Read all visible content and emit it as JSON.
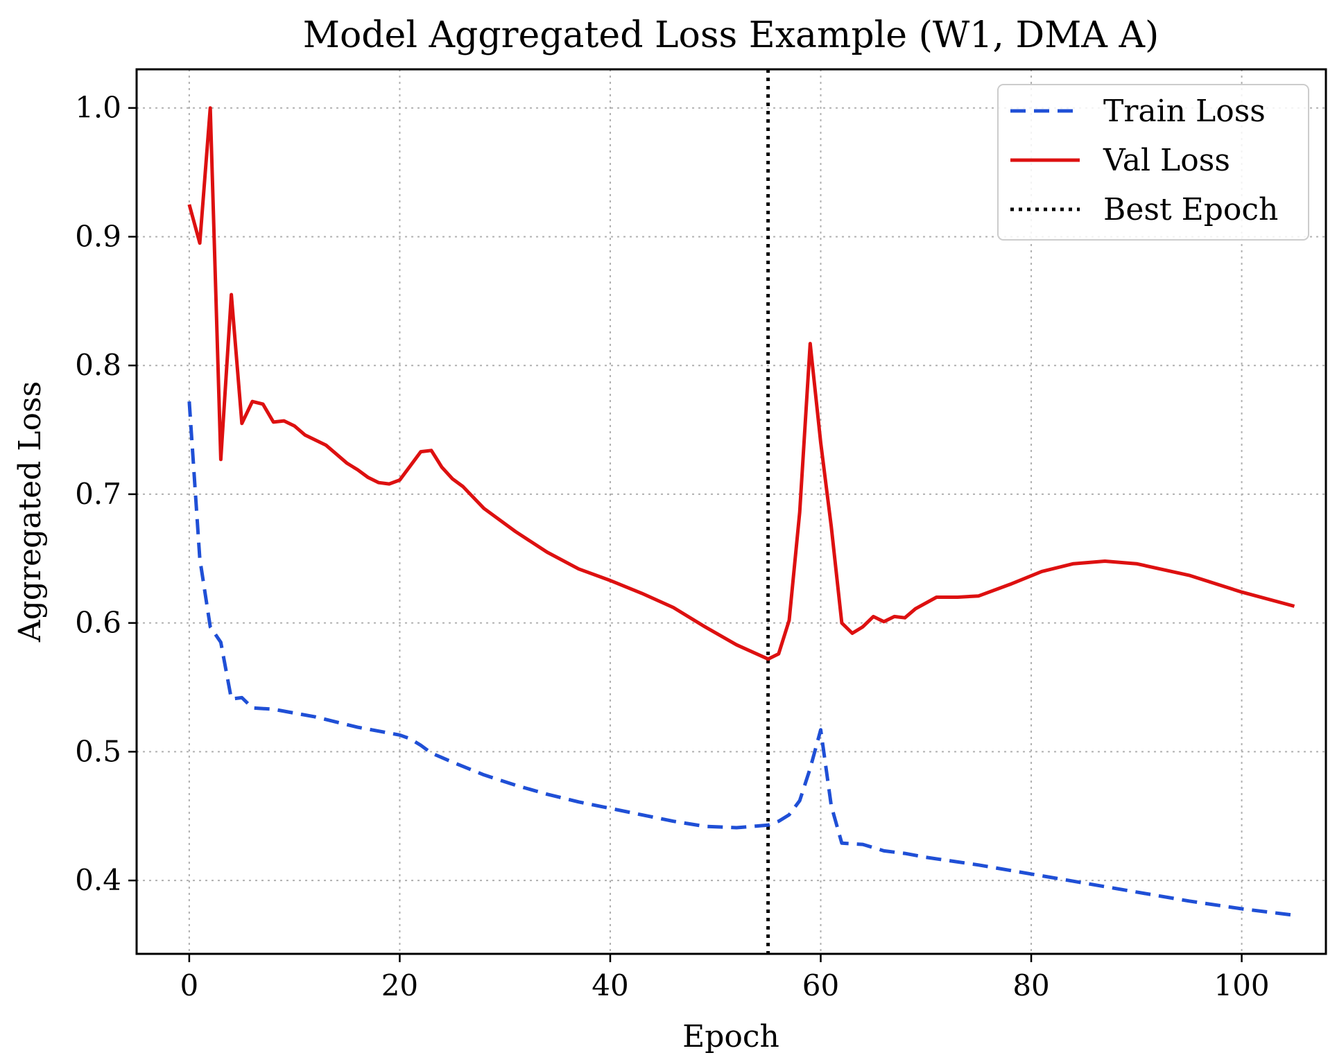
{
  "chart_data": {
    "type": "line",
    "title": "Model Aggregated Loss Example (W1, DMA A)",
    "xlabel": "Epoch",
    "ylabel": "Aggregated Loss",
    "xlim": [
      -5,
      108
    ],
    "ylim": [
      0.343,
      1.03
    ],
    "xticks": [
      0,
      20,
      40,
      60,
      80,
      100
    ],
    "yticks": [
      0.4,
      0.5,
      0.6,
      0.7,
      0.8,
      0.9,
      1.0
    ],
    "xtick_labels": [
      "0",
      "20",
      "40",
      "60",
      "80",
      "100"
    ],
    "ytick_labels": [
      "0.4",
      "0.5",
      "0.6",
      "0.7",
      "0.8",
      "0.9",
      "1.0"
    ],
    "grid": true,
    "legend_position": "top-right",
    "series": [
      {
        "name": "Train Loss",
        "color": "#1f4fd6",
        "style": "dashed",
        "x": [
          0,
          1,
          2,
          3,
          4,
          5,
          6,
          8,
          10,
          12,
          14,
          16,
          18,
          20,
          21,
          22,
          23,
          25,
          28,
          31,
          34,
          37,
          40,
          43,
          46,
          49,
          52,
          55,
          56,
          57,
          58,
          59,
          60,
          61,
          62,
          64,
          66,
          68,
          70,
          75,
          80,
          85,
          90,
          95,
          100,
          105
        ],
        "values": [
          0.772,
          0.65,
          0.597,
          0.585,
          0.541,
          0.542,
          0.534,
          0.533,
          0.53,
          0.527,
          0.523,
          0.519,
          0.516,
          0.513,
          0.51,
          0.505,
          0.499,
          0.492,
          0.482,
          0.474,
          0.467,
          0.461,
          0.456,
          0.451,
          0.446,
          0.442,
          0.441,
          0.443,
          0.446,
          0.451,
          0.462,
          0.487,
          0.517,
          0.458,
          0.429,
          0.428,
          0.423,
          0.421,
          0.418,
          0.412,
          0.405,
          0.398,
          0.391,
          0.384,
          0.378,
          0.373
        ]
      },
      {
        "name": "Val Loss",
        "color": "#dd1010",
        "style": "solid",
        "x": [
          0,
          1,
          2,
          3,
          4,
          5,
          6,
          7,
          8,
          9,
          10,
          11,
          12,
          13,
          14,
          15,
          16,
          17,
          18,
          19,
          20,
          21,
          22,
          23,
          24,
          25,
          26,
          28,
          31,
          34,
          37,
          40,
          43,
          46,
          49,
          52,
          55,
          56,
          57,
          58,
          59,
          60,
          61,
          62,
          63,
          64,
          65,
          66,
          67,
          68,
          69,
          71,
          73,
          75,
          78,
          81,
          84,
          87,
          90,
          95,
          100,
          105
        ],
        "values": [
          0.925,
          0.895,
          1.0,
          0.727,
          0.855,
          0.755,
          0.772,
          0.77,
          0.756,
          0.757,
          0.753,
          0.746,
          0.742,
          0.738,
          0.731,
          0.724,
          0.719,
          0.713,
          0.709,
          0.708,
          0.711,
          0.722,
          0.733,
          0.734,
          0.721,
          0.712,
          0.706,
          0.689,
          0.671,
          0.655,
          0.642,
          0.633,
          0.623,
          0.612,
          0.597,
          0.583,
          0.572,
          0.576,
          0.602,
          0.686,
          0.817,
          0.74,
          0.675,
          0.6,
          0.592,
          0.597,
          0.605,
          0.601,
          0.605,
          0.604,
          0.611,
          0.62,
          0.62,
          0.621,
          0.63,
          0.64,
          0.646,
          0.648,
          0.646,
          0.637,
          0.624,
          0.613
        ]
      },
      {
        "name": "Best Epoch",
        "color": "#000000",
        "style": "dotted",
        "vline_x": 55
      }
    ]
  }
}
